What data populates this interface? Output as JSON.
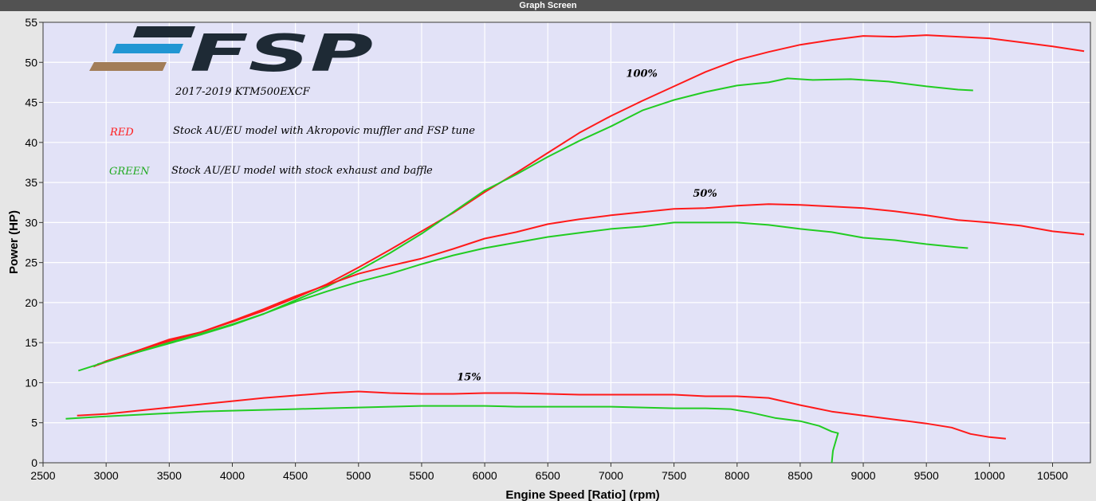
{
  "window": {
    "title": "Graph Screen"
  },
  "colors": {
    "red": "#ff1a1a",
    "green": "#22cc22",
    "plot_bg": "#e2e2f7",
    "grid": "#ffffff"
  },
  "logo": {
    "text": "FSP"
  },
  "notes": {
    "subtitle": "2017-2019 KTM500EXCF",
    "red_key": "RED",
    "red_desc": "Stock AU/EU model with Akropovic muffler and FSP tune",
    "green_key": "GREEN",
    "green_desc": "Stock AU/EU model with stock exhaust and baffle"
  },
  "annotations": [
    {
      "text": "100%",
      "x": 7120,
      "y": 48.2
    },
    {
      "text": "50%",
      "x": 7650,
      "y": 33.2
    },
    {
      "text": "15%",
      "x": 5780,
      "y": 10.3
    }
  ],
  "chart_data": {
    "type": "line",
    "title": "",
    "xlabel": "Engine Speed [Ratio] (rpm)",
    "ylabel": "Power (HP)",
    "xlim": [
      2500,
      10800
    ],
    "ylim": [
      0,
      55
    ],
    "xticks": [
      2500,
      3000,
      3500,
      4000,
      4500,
      5000,
      5500,
      6000,
      6500,
      7000,
      7500,
      8000,
      8500,
      9000,
      9500,
      10000,
      10500
    ],
    "yticks": [
      0,
      5,
      10,
      15,
      20,
      25,
      30,
      35,
      40,
      45,
      50,
      55
    ],
    "grid": true,
    "series": [
      {
        "color": "red",
        "points": [
          [
            2900,
            12.0
          ],
          [
            3000,
            12.7
          ],
          [
            3250,
            14.0
          ],
          [
            3500,
            15.4
          ],
          [
            3750,
            16.3
          ],
          [
            4000,
            17.6
          ],
          [
            4250,
            19.0
          ],
          [
            4500,
            20.6
          ],
          [
            4750,
            22.3
          ],
          [
            5000,
            24.4
          ],
          [
            5250,
            26.6
          ],
          [
            5500,
            28.9
          ],
          [
            5750,
            31.2
          ],
          [
            6000,
            33.8
          ],
          [
            6250,
            36.2
          ],
          [
            6500,
            38.7
          ],
          [
            6750,
            41.2
          ],
          [
            7000,
            43.3
          ],
          [
            7250,
            45.2
          ],
          [
            7500,
            47.0
          ],
          [
            7750,
            48.8
          ],
          [
            8000,
            50.3
          ],
          [
            8250,
            51.3
          ],
          [
            8500,
            52.2
          ],
          [
            8750,
            52.8
          ],
          [
            9000,
            53.3
          ],
          [
            9250,
            53.2
          ],
          [
            9500,
            53.4
          ],
          [
            9750,
            53.2
          ],
          [
            10000,
            53.0
          ],
          [
            10250,
            52.5
          ],
          [
            10500,
            52.0
          ],
          [
            10750,
            51.4
          ]
        ]
      },
      {
        "color": "green",
        "points": [
          [
            2780,
            11.5
          ],
          [
            3000,
            12.6
          ],
          [
            3250,
            13.8
          ],
          [
            3500,
            14.9
          ],
          [
            3750,
            16.0
          ],
          [
            4000,
            17.2
          ],
          [
            4250,
            18.6
          ],
          [
            4500,
            20.3
          ],
          [
            4750,
            22.0
          ],
          [
            5000,
            24.0
          ],
          [
            5250,
            26.2
          ],
          [
            5500,
            28.6
          ],
          [
            5750,
            31.3
          ],
          [
            6000,
            34.0
          ],
          [
            6250,
            36.0
          ],
          [
            6500,
            38.2
          ],
          [
            6750,
            40.2
          ],
          [
            7000,
            42.0
          ],
          [
            7250,
            44.0
          ],
          [
            7500,
            45.3
          ],
          [
            7750,
            46.3
          ],
          [
            8000,
            47.1
          ],
          [
            8250,
            47.5
          ],
          [
            8400,
            48.0
          ],
          [
            8600,
            47.8
          ],
          [
            8900,
            47.9
          ],
          [
            9200,
            47.6
          ],
          [
            9500,
            47.0
          ],
          [
            9750,
            46.6
          ],
          [
            9870,
            46.5
          ]
        ]
      },
      {
        "color": "red",
        "points": [
          [
            2930,
            12.2
          ],
          [
            3000,
            12.6
          ],
          [
            3250,
            14.0
          ],
          [
            3500,
            15.2
          ],
          [
            3750,
            16.3
          ],
          [
            4000,
            17.7
          ],
          [
            4250,
            19.2
          ],
          [
            4500,
            20.8
          ],
          [
            4750,
            22.2
          ],
          [
            5000,
            23.6
          ],
          [
            5250,
            24.6
          ],
          [
            5500,
            25.5
          ],
          [
            5750,
            26.7
          ],
          [
            6000,
            28.0
          ],
          [
            6250,
            28.8
          ],
          [
            6500,
            29.8
          ],
          [
            6750,
            30.4
          ],
          [
            7000,
            30.9
          ],
          [
            7250,
            31.3
          ],
          [
            7500,
            31.7
          ],
          [
            7750,
            31.8
          ],
          [
            8000,
            32.1
          ],
          [
            8250,
            32.3
          ],
          [
            8500,
            32.2
          ],
          [
            8750,
            32.0
          ],
          [
            9000,
            31.8
          ],
          [
            9250,
            31.4
          ],
          [
            9500,
            30.9
          ],
          [
            9750,
            30.3
          ],
          [
            10000,
            30.0
          ],
          [
            10250,
            29.6
          ],
          [
            10500,
            28.9
          ],
          [
            10750,
            28.5
          ]
        ]
      },
      {
        "color": "green",
        "points": [
          [
            2930,
            12.3
          ],
          [
            3000,
            12.6
          ],
          [
            3250,
            13.8
          ],
          [
            3500,
            15.0
          ],
          [
            3750,
            16.1
          ],
          [
            4000,
            17.3
          ],
          [
            4250,
            18.6
          ],
          [
            4500,
            20.1
          ],
          [
            4750,
            21.4
          ],
          [
            5000,
            22.6
          ],
          [
            5250,
            23.6
          ],
          [
            5500,
            24.8
          ],
          [
            5750,
            25.9
          ],
          [
            6000,
            26.8
          ],
          [
            6250,
            27.5
          ],
          [
            6500,
            28.2
          ],
          [
            6750,
            28.7
          ],
          [
            7000,
            29.2
          ],
          [
            7250,
            29.5
          ],
          [
            7500,
            30.0
          ],
          [
            7750,
            30.0
          ],
          [
            8000,
            30.0
          ],
          [
            8250,
            29.7
          ],
          [
            8500,
            29.2
          ],
          [
            8750,
            28.8
          ],
          [
            9000,
            28.1
          ],
          [
            9250,
            27.8
          ],
          [
            9500,
            27.3
          ],
          [
            9750,
            26.9
          ],
          [
            9830,
            26.8
          ]
        ]
      },
      {
        "color": "red",
        "points": [
          [
            2770,
            5.9
          ],
          [
            3000,
            6.1
          ],
          [
            3250,
            6.5
          ],
          [
            3500,
            6.9
          ],
          [
            3750,
            7.3
          ],
          [
            4000,
            7.7
          ],
          [
            4250,
            8.1
          ],
          [
            4500,
            8.4
          ],
          [
            4750,
            8.7
          ],
          [
            5000,
            8.9
          ],
          [
            5250,
            8.7
          ],
          [
            5500,
            8.6
          ],
          [
            5750,
            8.6
          ],
          [
            6000,
            8.7
          ],
          [
            6250,
            8.7
          ],
          [
            6500,
            8.6
          ],
          [
            6750,
            8.5
          ],
          [
            7000,
            8.5
          ],
          [
            7250,
            8.5
          ],
          [
            7500,
            8.5
          ],
          [
            7750,
            8.3
          ],
          [
            8000,
            8.3
          ],
          [
            8250,
            8.1
          ],
          [
            8500,
            7.2
          ],
          [
            8750,
            6.4
          ],
          [
            9000,
            5.9
          ],
          [
            9250,
            5.4
          ],
          [
            9500,
            4.9
          ],
          [
            9700,
            4.4
          ],
          [
            9850,
            3.6
          ],
          [
            10000,
            3.2
          ],
          [
            10130,
            3.0
          ]
        ]
      },
      {
        "color": "green",
        "points": [
          [
            2680,
            5.5
          ],
          [
            3000,
            5.8
          ],
          [
            3250,
            6.0
          ],
          [
            3500,
            6.2
          ],
          [
            3750,
            6.4
          ],
          [
            4000,
            6.5
          ],
          [
            4250,
            6.6
          ],
          [
            4500,
            6.7
          ],
          [
            4750,
            6.8
          ],
          [
            5000,
            6.9
          ],
          [
            5250,
            7.0
          ],
          [
            5500,
            7.1
          ],
          [
            5750,
            7.1
          ],
          [
            6000,
            7.1
          ],
          [
            6250,
            7.0
          ],
          [
            6500,
            7.0
          ],
          [
            6750,
            7.0
          ],
          [
            7000,
            7.0
          ],
          [
            7250,
            6.9
          ],
          [
            7500,
            6.8
          ],
          [
            7750,
            6.8
          ],
          [
            7950,
            6.7
          ],
          [
            8100,
            6.3
          ],
          [
            8300,
            5.6
          ],
          [
            8500,
            5.2
          ],
          [
            8650,
            4.6
          ],
          [
            8750,
            3.9
          ],
          [
            8800,
            3.7
          ],
          [
            8760,
            1.5
          ],
          [
            8750,
            0.0
          ]
        ]
      }
    ]
  }
}
